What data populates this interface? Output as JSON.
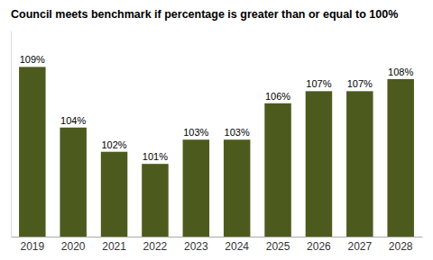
{
  "chart_data": {
    "type": "bar",
    "title": "Council meets benchmark if percentage is greater than or equal to 100%",
    "categories": [
      "2019",
      "2020",
      "2021",
      "2022",
      "2023",
      "2024",
      "2025",
      "2026",
      "2027",
      "2028"
    ],
    "values": [
      109,
      104,
      102,
      101,
      103,
      103,
      106,
      107,
      107,
      108
    ],
    "value_labels": [
      "109%",
      "104%",
      "102%",
      "101%",
      "103%",
      "103%",
      "106%",
      "107%",
      "107%",
      "108%"
    ],
    "color": "#4d5a1e",
    "ylim": [
      95,
      112
    ],
    "grid": false,
    "data_labels": true,
    "tick_labels": "x"
  }
}
